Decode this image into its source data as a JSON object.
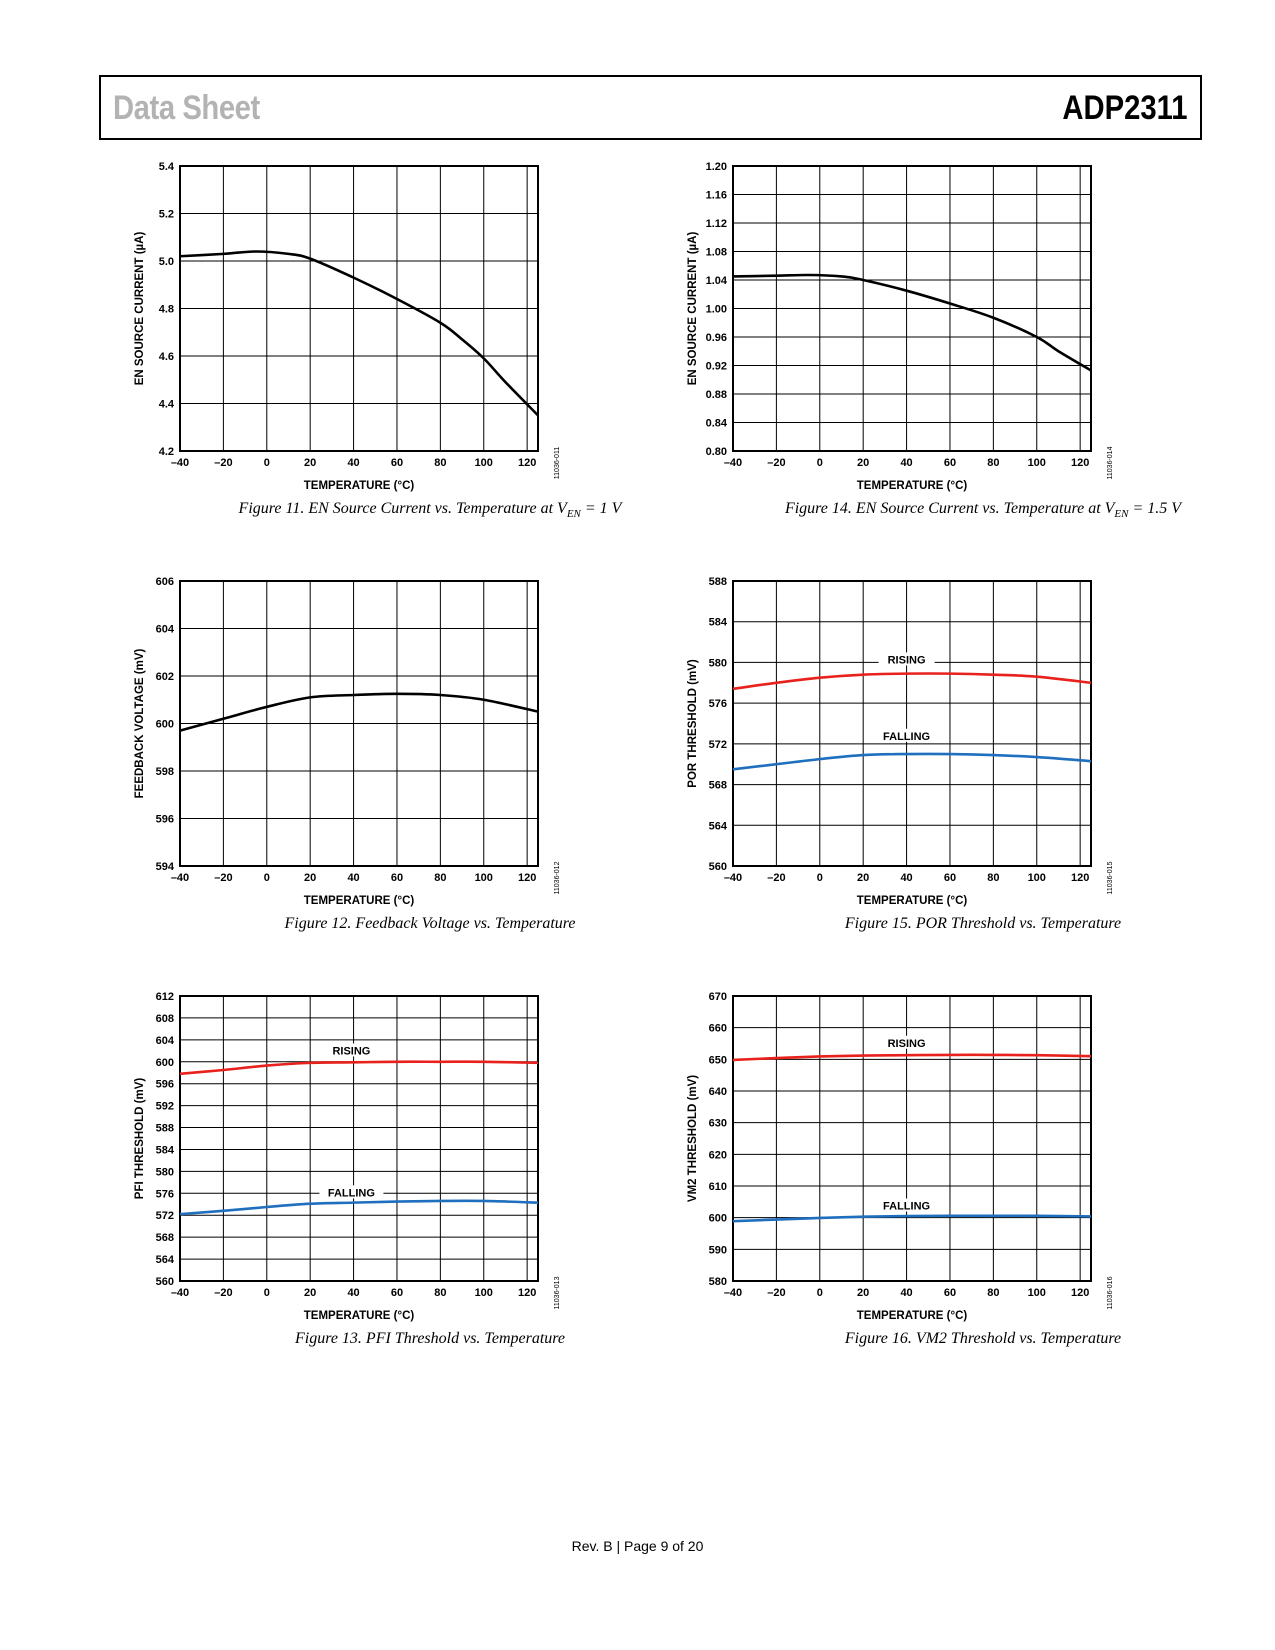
{
  "header": {
    "left": "Data Sheet",
    "right": "ADP2311"
  },
  "footer": "Rev. B | Page 9 of 20",
  "chart_data": [
    {
      "id": "fig11",
      "type": "line",
      "caption_pre": "Figure 11. EN Source Current vs. Temperature at V",
      "caption_sub": "EN",
      "caption_post": " = 1 V",
      "xlabel": "TEMPERATURE (°C)",
      "ylabel": "EN SOURCE CURRENT (µA)",
      "code": "11036-011",
      "xlim": [
        -40,
        125
      ],
      "ylim": [
        4.2,
        5.4
      ],
      "xticks": [
        "–40",
        "–20",
        "0",
        "20",
        "40",
        "60",
        "80",
        "100",
        "120"
      ],
      "xtick_values": [
        -40,
        -20,
        0,
        20,
        40,
        60,
        80,
        100,
        120
      ],
      "yticks": [
        "4.2",
        "4.4",
        "4.6",
        "4.8",
        "5.0",
        "5.2",
        "5.4"
      ],
      "ytick_values": [
        4.2,
        4.4,
        4.6,
        4.8,
        5.0,
        5.2,
        5.4
      ],
      "series": [
        {
          "color": "#000000",
          "x": [
            -40,
            -20,
            -5,
            10,
            20,
            40,
            60,
            80,
            90,
            100,
            110,
            125
          ],
          "y": [
            5.02,
            5.03,
            5.04,
            5.03,
            5.01,
            4.93,
            4.84,
            4.74,
            4.67,
            4.59,
            4.49,
            4.35
          ]
        }
      ],
      "labels": []
    },
    {
      "id": "fig14",
      "type": "line",
      "caption_pre": "Figure 14. EN Source Current vs. Temperature at V",
      "caption_sub": "EN",
      "caption_post": " = 1.5 V",
      "xlabel": "TEMPERATURE (°C)",
      "ylabel": "EN SOURCE CURRENT (µA)",
      "code": "11036-014",
      "xlim": [
        -40,
        125
      ],
      "ylim": [
        0.8,
        1.2
      ],
      "xticks": [
        "–40",
        "–20",
        "0",
        "20",
        "40",
        "60",
        "80",
        "100",
        "120"
      ],
      "xtick_values": [
        -40,
        -20,
        0,
        20,
        40,
        60,
        80,
        100,
        120
      ],
      "yticks": [
        "0.80",
        "0.84",
        "0.88",
        "0.92",
        "0.96",
        "1.00",
        "1.04",
        "1.08",
        "1.12",
        "1.16",
        "1.20"
      ],
      "ytick_values": [
        0.8,
        0.84,
        0.88,
        0.92,
        0.96,
        1.0,
        1.04,
        1.08,
        1.12,
        1.16,
        1.2
      ],
      "series": [
        {
          "color": "#000000",
          "x": [
            -40,
            -20,
            -5,
            10,
            20,
            40,
            60,
            80,
            100,
            110,
            125
          ],
          "y": [
            1.045,
            1.046,
            1.047,
            1.045,
            1.04,
            1.025,
            1.007,
            0.987,
            0.96,
            0.94,
            0.913
          ]
        }
      ],
      "labels": []
    },
    {
      "id": "fig12",
      "type": "line",
      "caption_pre": "Figure 12. Feedback Voltage vs. Temperature",
      "caption_sub": "",
      "caption_post": "",
      "xlabel": "TEMPERATURE (°C)",
      "ylabel": "FEEDBACK VOLTAGE (mV)",
      "code": "11036-012",
      "xlim": [
        -40,
        125
      ],
      "ylim": [
        594,
        606
      ],
      "xticks": [
        "–40",
        "–20",
        "0",
        "20",
        "40",
        "60",
        "80",
        "100",
        "120"
      ],
      "xtick_values": [
        -40,
        -20,
        0,
        20,
        40,
        60,
        80,
        100,
        120
      ],
      "yticks": [
        "594",
        "596",
        "598",
        "600",
        "602",
        "604",
        "606"
      ],
      "ytick_values": [
        594,
        596,
        598,
        600,
        602,
        604,
        606
      ],
      "series": [
        {
          "color": "#000000",
          "x": [
            -40,
            -20,
            0,
            20,
            40,
            60,
            80,
            100,
            125
          ],
          "y": [
            599.7,
            600.2,
            600.7,
            601.1,
            601.2,
            601.25,
            601.2,
            601.0,
            600.5
          ]
        }
      ],
      "labels": []
    },
    {
      "id": "fig15",
      "type": "line",
      "caption_pre": "Figure 15. POR Threshold vs. Temperature",
      "caption_sub": "",
      "caption_post": "",
      "xlabel": "TEMPERATURE (°C)",
      "ylabel": "POR THRESHOLD (mV)",
      "code": "11036-015",
      "xlim": [
        -40,
        125
      ],
      "ylim": [
        560,
        588
      ],
      "xticks": [
        "–40",
        "–20",
        "0",
        "20",
        "40",
        "60",
        "80",
        "100",
        "120"
      ],
      "xtick_values": [
        -40,
        -20,
        0,
        20,
        40,
        60,
        80,
        100,
        120
      ],
      "yticks": [
        "560",
        "564",
        "568",
        "572",
        "576",
        "580",
        "584",
        "588"
      ],
      "ytick_values": [
        560,
        564,
        568,
        572,
        576,
        580,
        584,
        588
      ],
      "series": [
        {
          "color": "#e8211c",
          "x": [
            -40,
            -20,
            0,
            20,
            40,
            60,
            80,
            100,
            125
          ],
          "y": [
            577.4,
            578.0,
            578.5,
            578.8,
            578.9,
            578.9,
            578.8,
            578.6,
            578.0
          ]
        },
        {
          "color": "#1f6fbf",
          "x": [
            -40,
            -20,
            0,
            20,
            40,
            60,
            80,
            100,
            125
          ],
          "y": [
            569.5,
            570.0,
            570.5,
            570.9,
            571.0,
            571.0,
            570.9,
            570.7,
            570.3
          ]
        }
      ],
      "labels": [
        {
          "text": "RISING",
          "x": 40,
          "y": 580.1
        },
        {
          "text": "FALLING",
          "x": 40,
          "y": 572.6
        }
      ]
    },
    {
      "id": "fig13",
      "type": "line",
      "caption_pre": "Figure 13. PFI Threshold vs. Temperature",
      "caption_sub": "",
      "caption_post": "",
      "xlabel": "TEMPERATURE (°C)",
      "ylabel": "PFI THRESHOLD (mV)",
      "code": "11036-013",
      "xlim": [
        -40,
        125
      ],
      "ylim": [
        560,
        612
      ],
      "xticks": [
        "–40",
        "–20",
        "0",
        "20",
        "40",
        "60",
        "80",
        "100",
        "120"
      ],
      "xtick_values": [
        -40,
        -20,
        0,
        20,
        40,
        60,
        80,
        100,
        120
      ],
      "yticks": [
        "560",
        "564",
        "568",
        "572",
        "576",
        "580",
        "584",
        "588",
        "592",
        "596",
        "600",
        "604",
        "608",
        "612"
      ],
      "ytick_values": [
        560,
        564,
        568,
        572,
        576,
        580,
        584,
        588,
        592,
        596,
        600,
        604,
        608,
        612
      ],
      "series": [
        {
          "color": "#e8211c",
          "x": [
            -40,
            -20,
            0,
            20,
            40,
            60,
            80,
            100,
            125
          ],
          "y": [
            597.8,
            598.5,
            599.3,
            599.8,
            599.9,
            600.0,
            600.0,
            600.0,
            599.8
          ]
        },
        {
          "color": "#1f6fbf",
          "x": [
            -40,
            -20,
            0,
            20,
            40,
            60,
            80,
            100,
            125
          ],
          "y": [
            572.2,
            572.8,
            573.5,
            574.1,
            574.3,
            574.5,
            574.6,
            574.6,
            574.3
          ]
        }
      ],
      "labels": [
        {
          "text": "RISING",
          "x": 39,
          "y": 601.7
        },
        {
          "text": "FALLING",
          "x": 39,
          "y": 575.8
        }
      ]
    },
    {
      "id": "fig16",
      "type": "line",
      "caption_pre": "Figure 16. VM2 Threshold vs. Temperature",
      "caption_sub": "",
      "caption_post": "",
      "xlabel": "TEMPERATURE (°C)",
      "ylabel": "VM2 THRESHOLD (mV)",
      "code": "11036-016",
      "xlim": [
        -40,
        125
      ],
      "ylim": [
        580,
        670
      ],
      "xticks": [
        "–40",
        "–20",
        "0",
        "20",
        "40",
        "60",
        "80",
        "100",
        "120"
      ],
      "xtick_values": [
        -40,
        -20,
        0,
        20,
        40,
        60,
        80,
        100,
        120
      ],
      "yticks": [
        "580",
        "590",
        "600",
        "610",
        "620",
        "630",
        "640",
        "650",
        "660",
        "670"
      ],
      "ytick_values": [
        580,
        590,
        600,
        610,
        620,
        630,
        640,
        650,
        660,
        670
      ],
      "series": [
        {
          "color": "#e8211c",
          "x": [
            -40,
            -20,
            0,
            20,
            40,
            60,
            80,
            100,
            125
          ],
          "y": [
            649.8,
            650.4,
            650.9,
            651.2,
            651.3,
            651.4,
            651.4,
            651.3,
            651.0
          ]
        },
        {
          "color": "#1f6fbf",
          "x": [
            -40,
            -20,
            0,
            20,
            40,
            60,
            80,
            100,
            125
          ],
          "y": [
            598.9,
            599.4,
            599.9,
            600.3,
            600.5,
            600.6,
            600.6,
            600.6,
            600.4
          ]
        }
      ],
      "labels": [
        {
          "text": "RISING",
          "x": 40,
          "y": 654.6
        },
        {
          "text": "FALLING",
          "x": 40,
          "y": 603.2
        }
      ]
    }
  ]
}
